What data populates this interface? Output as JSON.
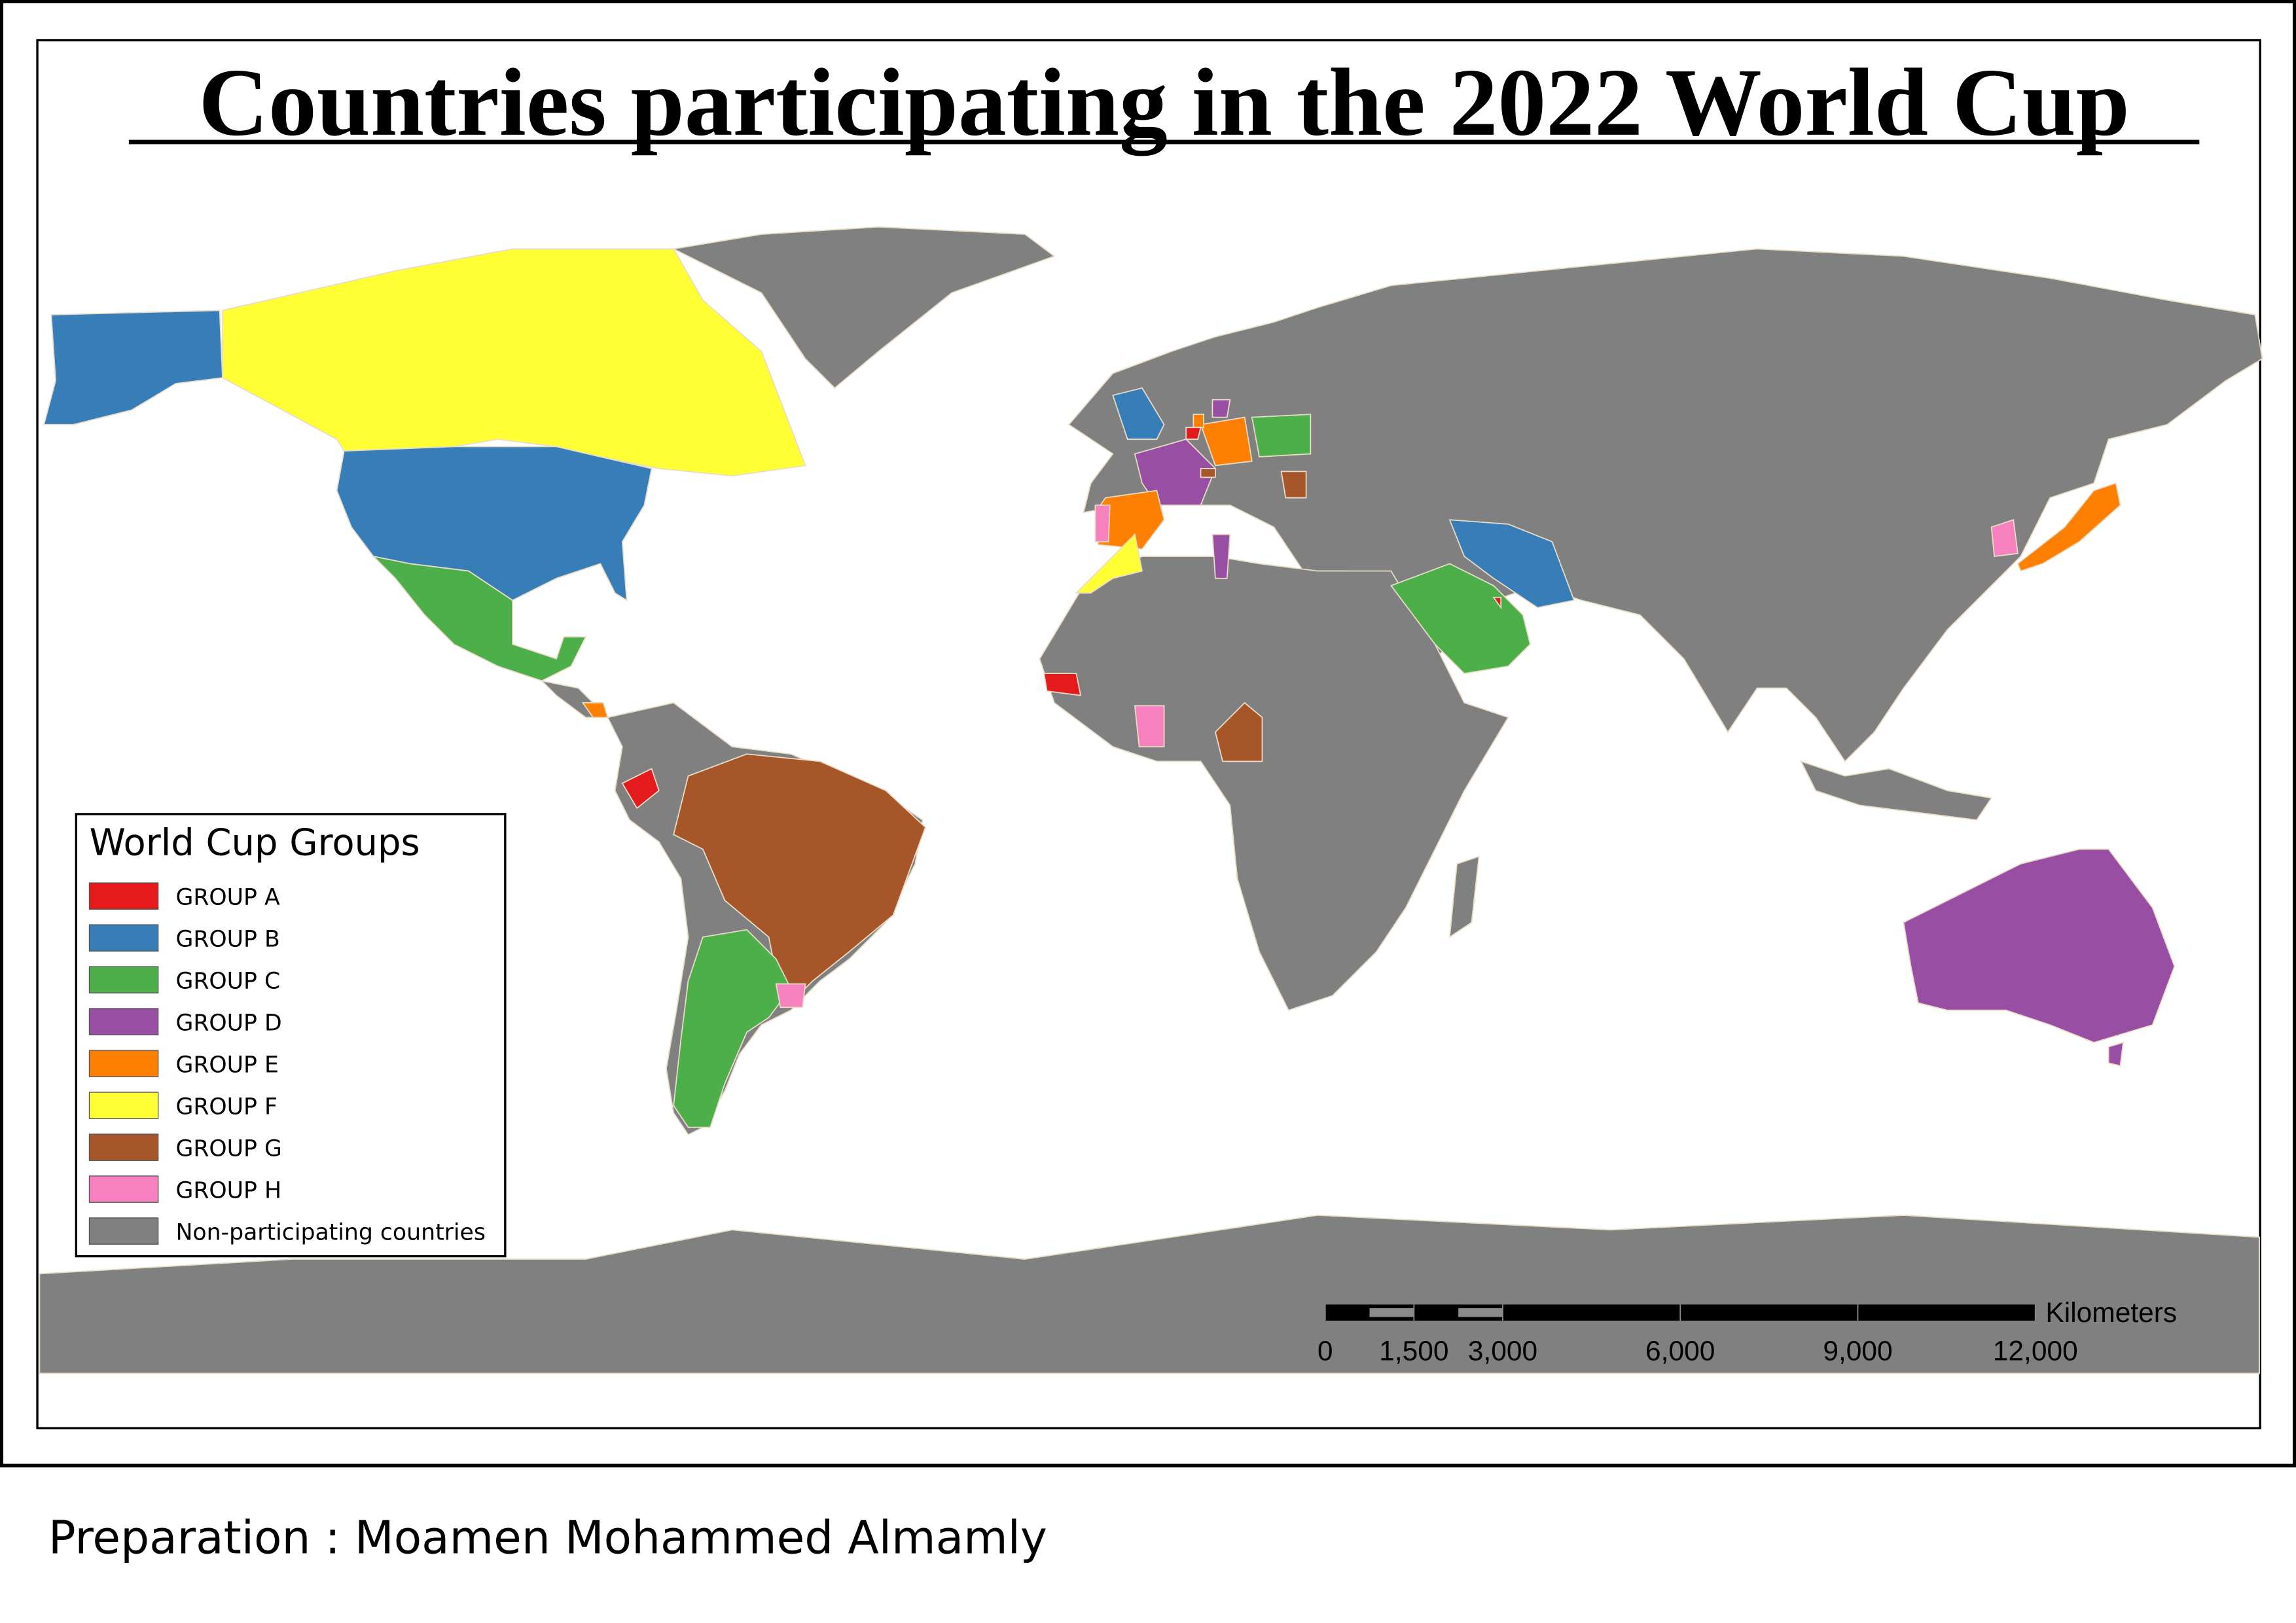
{
  "title": "Countries participating in the 2022 World Cup",
  "legend": {
    "title": "World Cup Groups",
    "items": [
      {
        "label": "GROUP A",
        "color": "#e41a1c"
      },
      {
        "label": "GROUP B",
        "color": "#377eb8"
      },
      {
        "label": "GROUP C",
        "color": "#4daf4a"
      },
      {
        "label": "GROUP D",
        "color": "#984ea3"
      },
      {
        "label": "GROUP E",
        "color": "#ff7f00"
      },
      {
        "label": "GROUP F",
        "color": "#ffff33"
      },
      {
        "label": "GROUP G",
        "color": "#a65628"
      },
      {
        "label": "GROUP H",
        "color": "#f781bf"
      },
      {
        "label": "Non-participating countries",
        "color": "#808080"
      }
    ]
  },
  "scale_bar": {
    "unit": "Kilometers",
    "ticks": [
      {
        "value": 0,
        "label": "0"
      },
      {
        "value": 1500,
        "label": "1,500"
      },
      {
        "value": 3000,
        "label": "3,000"
      },
      {
        "value": 6000,
        "label": "6,000"
      },
      {
        "value": 9000,
        "label": "9,000"
      },
      {
        "value": 12000,
        "label": "12,000"
      }
    ]
  },
  "footer": "Preparation : Moamen Mohammed Almamly"
}
